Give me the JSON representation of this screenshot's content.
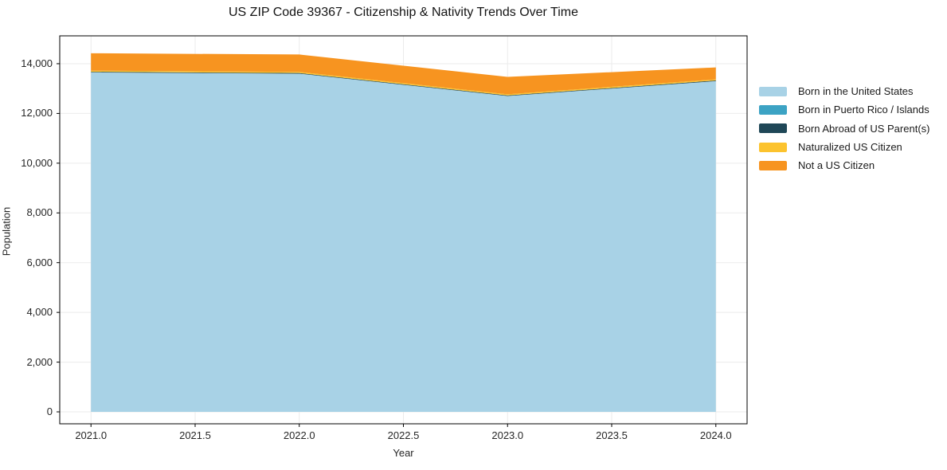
{
  "figure": {
    "background": "#ffffff",
    "text_color": "#1a1a1a",
    "grid_color": "#ebebeb",
    "spine_color": "#000000"
  },
  "chart_data": {
    "type": "area",
    "stacked": true,
    "title": "US ZIP Code 39367 - Citizenship & Nativity Trends Over Time",
    "xlabel": "Year",
    "ylabel": "Population",
    "grid": true,
    "legend_position": "right",
    "x": [
      2021,
      2022,
      2023,
      2024
    ],
    "series": [
      {
        "name": "Born in the United States",
        "color": "#a8d2e6",
        "values": [
          13650,
          13600,
          12700,
          13300
        ]
      },
      {
        "name": "Born in Puerto Rico / Islands",
        "color": "#3ca3c4",
        "values": [
          0,
          0,
          0,
          0
        ]
      },
      {
        "name": "Born Abroad of US Parent(s)",
        "color": "#1f4757",
        "values": [
          25,
          25,
          25,
          25
        ]
      },
      {
        "name": "Naturalized US Citizen",
        "color": "#fcc32e",
        "values": [
          45,
          45,
          45,
          45
        ]
      },
      {
        "name": "Not a US Citizen",
        "color": "#f79420",
        "values": [
          700,
          700,
          700,
          480
        ]
      }
    ],
    "stacked_totals": [
      14420,
      14370,
      13470,
      13850
    ],
    "xlim": [
      2020.85,
      2024.15
    ],
    "ylim": [
      -480,
      15120
    ],
    "xticks": [
      2021.0,
      2021.5,
      2022.0,
      2022.5,
      2023.0,
      2023.5,
      2024.0
    ],
    "xtick_labels": [
      "2021.0",
      "2021.5",
      "2022.0",
      "2022.5",
      "2023.0",
      "2023.5",
      "2024.0"
    ],
    "yticks": [
      0,
      2000,
      4000,
      6000,
      8000,
      10000,
      12000,
      14000
    ],
    "ytick_labels": [
      "0",
      "2,000",
      "4,000",
      "6,000",
      "8,000",
      "10,000",
      "12,000",
      "14,000"
    ]
  }
}
